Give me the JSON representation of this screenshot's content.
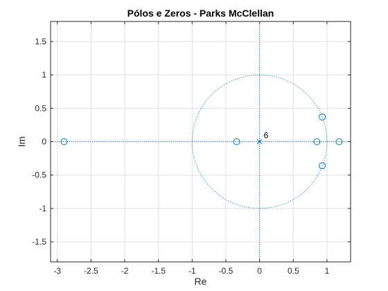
{
  "chart_data": {
    "type": "scatter",
    "title": "Pólos e Zeros - Parks McClellan",
    "xlabel": "Re",
    "ylabel": "Im",
    "xlim": [
      -3.1,
      1.35
    ],
    "ylim": [
      -1.8,
      1.8
    ],
    "x_ticks": [
      -3,
      -2.5,
      -2,
      -1.5,
      -1,
      -0.5,
      0,
      0.5,
      1
    ],
    "x_tick_labels": [
      "-3",
      "-2.5",
      "-2",
      "-1.5",
      "-1",
      "-0.5",
      "0",
      "0.5",
      "1"
    ],
    "y_ticks": [
      1.5,
      1,
      0.5,
      0,
      -0.5,
      -1,
      -1.5
    ],
    "y_tick_labels": [
      "1.5",
      "1",
      "0.5",
      "0",
      "-0.5",
      "-1",
      "-1.5"
    ],
    "grid": true,
    "unit_circle": true,
    "series": [
      {
        "marker": "o",
        "points": [
          {
            "x": -2.9,
            "y": 0
          },
          {
            "x": -0.34,
            "y": 0
          },
          {
            "x": 0.85,
            "y": 0
          },
          {
            "x": 1.18,
            "y": 0
          },
          {
            "x": 0.93,
            "y": 0.37
          },
          {
            "x": 0.93,
            "y": -0.36
          }
        ]
      },
      {
        "marker": "x",
        "points": [
          {
            "x": 0,
            "y": 0
          }
        ]
      }
    ],
    "annotations": [
      {
        "text": "6",
        "x": 0,
        "y": 0
      }
    ],
    "colors": {
      "marker": "#0072bd",
      "grid": "#dfdfdf",
      "axis": "#262626",
      "reference": "#0072bd"
    }
  }
}
